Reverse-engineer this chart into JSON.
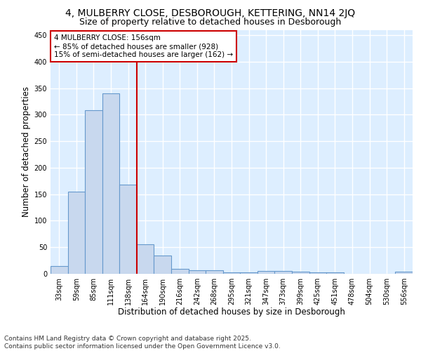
{
  "title_line1": "4, MULBERRY CLOSE, DESBOROUGH, KETTERING, NN14 2JQ",
  "title_line2": "Size of property relative to detached houses in Desborough",
  "xlabel": "Distribution of detached houses by size in Desborough",
  "ylabel": "Number of detached properties",
  "bar_color": "#c8d8ee",
  "bar_edge_color": "#6699cc",
  "fig_bg_color": "#ffffff",
  "plot_bg_color": "#ddeeff",
  "grid_color": "#ffffff",
  "categories": [
    "33sqm",
    "59sqm",
    "85sqm",
    "111sqm",
    "138sqm",
    "164sqm",
    "190sqm",
    "216sqm",
    "242sqm",
    "268sqm",
    "295sqm",
    "321sqm",
    "347sqm",
    "373sqm",
    "399sqm",
    "425sqm",
    "451sqm",
    "478sqm",
    "504sqm",
    "530sqm",
    "556sqm"
  ],
  "values": [
    15,
    155,
    308,
    340,
    168,
    56,
    34,
    9,
    7,
    6,
    3,
    3,
    5,
    5,
    4,
    3,
    3,
    0,
    0,
    0,
    4
  ],
  "ylim": [
    0,
    460
  ],
  "yticks": [
    0,
    50,
    100,
    150,
    200,
    250,
    300,
    350,
    400,
    450
  ],
  "vline_x": 4.5,
  "vline_color": "#cc0000",
  "annotation_text": "4 MULBERRY CLOSE: 156sqm\n← 85% of detached houses are smaller (928)\n15% of semi-detached houses are larger (162) →",
  "annotation_box_color": "#cc0000",
  "footer_line1": "Contains HM Land Registry data © Crown copyright and database right 2025.",
  "footer_line2": "Contains public sector information licensed under the Open Government Licence v3.0.",
  "title_fontsize": 10,
  "subtitle_fontsize": 9,
  "axis_label_fontsize": 8.5,
  "tick_fontsize": 7,
  "annotation_fontsize": 7.5,
  "footer_fontsize": 6.5
}
